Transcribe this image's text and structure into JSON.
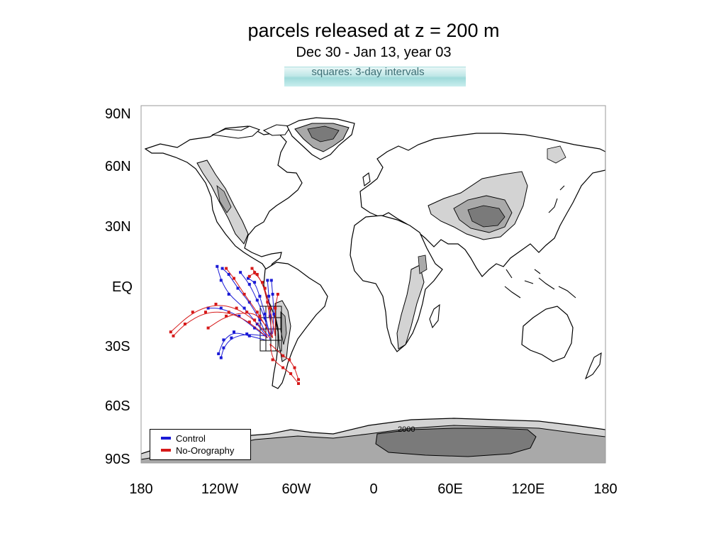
{
  "title": "parcels released at z = 200 m",
  "subtitle": "Dec 30 - Jan 13, year 03",
  "note": "squares: 3-day intervals",
  "contour_label": "2000",
  "axes": {
    "y_ticks": [
      "90N",
      "60N",
      "30N",
      "EQ",
      "30S",
      "60S",
      "90S"
    ],
    "x_ticks": [
      "180",
      "120W",
      "60W",
      "0",
      "60E",
      "120E",
      "180"
    ]
  },
  "legend": {
    "placement": "bottom-left",
    "items": [
      {
        "label": "Control",
        "color": "#1a1ad6"
      },
      {
        "label": "No-Orography",
        "color": "#d61a1a"
      }
    ]
  },
  "colors": {
    "control": "#1a1ad6",
    "no_orography": "#d61a1a",
    "topo_light": "#d3d3d3",
    "topo_mid": "#a9a9a9",
    "topo_dark": "#7a7a7a",
    "coast": "#000000"
  },
  "chart_data": {
    "type": "map-trajectories",
    "lon_range": [
      -180,
      180
    ],
    "lat_range": [
      -90,
      90
    ],
    "release_site_region": "west of South America",
    "series": [
      {
        "name": "Control",
        "tracks": [
          [
            [
              -82,
              -27
            ],
            [
              -90,
              -20
            ],
            [
              -100,
              -12
            ],
            [
              -112,
              -5
            ],
            [
              -118,
              2
            ],
            [
              -121,
              9
            ]
          ],
          [
            [
              -82,
              -27
            ],
            [
              -88,
              -18
            ],
            [
              -96,
              -9
            ],
            [
              -105,
              -2
            ],
            [
              -112,
              5
            ],
            [
              -117,
              8
            ]
          ],
          [
            [
              -80,
              -28
            ],
            [
              -84,
              -17
            ],
            [
              -90,
              -8
            ],
            [
              -96,
              0
            ],
            [
              -103,
              6
            ]
          ],
          [
            [
              -80,
              -26
            ],
            [
              -84,
              -15
            ],
            [
              -88,
              -6
            ],
            [
              -92,
              1
            ],
            [
              -97,
              3
            ]
          ],
          [
            [
              -82,
              -27
            ],
            [
              -92,
              -22
            ],
            [
              -104,
              -16
            ],
            [
              -118,
              -12
            ],
            [
              -128,
              -12
            ]
          ],
          [
            [
              -84,
              -28
            ],
            [
              -96,
              -26
            ],
            [
              -108,
              -24
            ],
            [
              -116,
              -28
            ],
            [
              -120,
              -35
            ]
          ],
          [
            [
              -84,
              -26
            ],
            [
              -98,
              -25
            ],
            [
              -110,
              -27
            ],
            [
              -116,
              -32
            ],
            [
              -118,
              -37
            ]
          ],
          [
            [
              -79,
              -26
            ],
            [
              -80,
              -16
            ],
            [
              -81,
              -6
            ],
            [
              -82,
              2
            ]
          ],
          [
            [
              -78,
              -25
            ],
            [
              -77,
              -15
            ],
            [
              -78,
              -5
            ],
            [
              -79,
              2
            ]
          ]
        ]
      },
      {
        "name": "No-Orography",
        "tracks": [
          [
            [
              -80,
              -27
            ],
            [
              -92,
              -18
            ],
            [
              -106,
              -12
            ],
            [
              -122,
              -10
            ],
            [
              -140,
              -14
            ],
            [
              -157,
              -24
            ]
          ],
          [
            [
              -82,
              -27
            ],
            [
              -96,
              -19
            ],
            [
              -112,
              -14
            ],
            [
              -130,
              -14
            ],
            [
              -146,
              -20
            ],
            [
              -155,
              -26
            ]
          ],
          [
            [
              -78,
              -27
            ],
            [
              -90,
              -14
            ],
            [
              -100,
              -5
            ],
            [
              -108,
              3
            ],
            [
              -114,
              8
            ]
          ],
          [
            [
              -76,
              -26
            ],
            [
              -80,
              -12
            ],
            [
              -84,
              -2
            ],
            [
              -90,
              5
            ],
            [
              -94,
              8
            ]
          ],
          [
            [
              -76,
              -26
            ],
            [
              -76,
              -12
            ],
            [
              -74,
              -5
            ]
          ],
          [
            [
              -78,
              -27
            ],
            [
              -88,
              -16
            ],
            [
              -98,
              -14
            ],
            [
              -114,
              -16
            ],
            [
              -128,
              -22
            ]
          ],
          [
            [
              -80,
              -30
            ],
            [
              -78,
              -38
            ],
            [
              -70,
              -42
            ],
            [
              -64,
              -45
            ],
            [
              -58,
              -50
            ]
          ],
          [
            [
              -80,
              -30
            ],
            [
              -70,
              -36
            ],
            [
              -65,
              -38
            ],
            [
              -61,
              -42
            ],
            [
              -58,
              -48
            ]
          ],
          [
            [
              -78,
              -27
            ],
            [
              -82,
              -9
            ],
            [
              -86,
              1
            ],
            [
              -92,
              6
            ],
            [
              -96,
              4
            ]
          ]
        ]
      }
    ]
  }
}
